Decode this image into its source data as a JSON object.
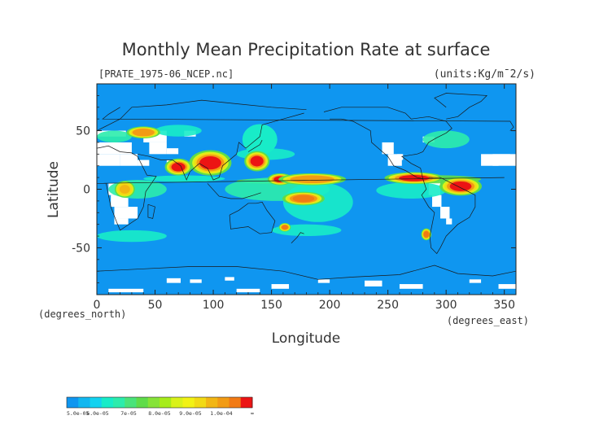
{
  "chart_data": {
    "type": "heatmap",
    "title": "Monthly Mean Precipitation Rate at surface",
    "subtitle": "[PRATE_1975-06_NCEP.nc]",
    "units": "(units:Kg/m¯2/s)",
    "xlabel": "Longitude",
    "ylabel": "Latitude",
    "x_unit_label": "(degrees_east)",
    "y_unit_label": "(degrees_north)",
    "xlim": [
      0,
      360
    ],
    "ylim": [
      -90,
      90
    ],
    "x_ticks": [
      "0",
      "50",
      "100",
      "150",
      "200",
      "250",
      "300",
      "350"
    ],
    "y_ticks": [
      "50",
      "0",
      "-50"
    ],
    "background_color": "#0f96f0",
    "missing_color": "#ffffff",
    "colorbar": {
      "colors": [
        "#0f96f0",
        "#11b7f0",
        "#13d2f0",
        "#18ecc8",
        "#2cecac",
        "#4ae37a",
        "#5fdc4a",
        "#86e338",
        "#a7ec1a",
        "#d9f21a",
        "#f2f214",
        "#f2da14",
        "#f2b614",
        "#f29b14",
        "#f27a14",
        "#ec1414"
      ],
      "labels": [
        "5.0e-05",
        "6.0e-05",
        "7e-05",
        "8.0e-05",
        "9.0e-05",
        "1.0e-04",
        "∞"
      ]
    },
    "regions": [
      {
        "lon": [
          120,
          160
        ],
        "lat": [
          25,
          60
        ],
        "level": 3
      },
      {
        "lon": [
          85,
          110
        ],
        "lat": [
          15,
          30
        ],
        "level": 15
      },
      {
        "lon": [
          62,
          78
        ],
        "lat": [
          14,
          24
        ],
        "level": 15
      },
      {
        "lon": [
          130,
          145
        ],
        "lat": [
          18,
          30
        ],
        "level": 15
      },
      {
        "lon": [
          150,
          165
        ],
        "lat": [
          5,
          12
        ],
        "level": 15
      },
      {
        "lon": [
          165,
          205
        ],
        "lat": [
          5,
          12
        ],
        "level": 13
      },
      {
        "lon": [
          165,
          190
        ],
        "lat": [
          -12,
          -4
        ],
        "level": 14
      },
      {
        "lon": [
          255,
          290
        ],
        "lat": [
          6,
          13
        ],
        "level": 15
      },
      {
        "lon": [
          300,
          325
        ],
        "lat": [
          -3,
          8
        ],
        "level": 15
      },
      {
        "lon": [
          158,
          165
        ],
        "lat": [
          -35,
          -30
        ],
        "level": 14
      },
      {
        "lon": [
          280,
          286
        ],
        "lat": [
          -42,
          -35
        ],
        "level": 14
      },
      {
        "lon": [
          30,
          50
        ],
        "lat": [
          45,
          52
        ],
        "level": 13
      },
      {
        "lon": [
          18,
          30
        ],
        "lat": [
          -5,
          5
        ],
        "level": 12
      }
    ]
  }
}
